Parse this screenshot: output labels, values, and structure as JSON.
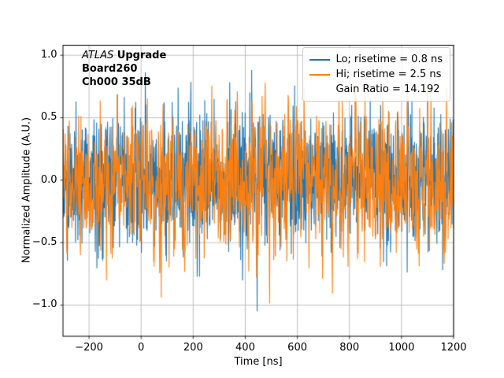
{
  "chart_data": {
    "type": "line",
    "xlabel": "Time [ns]",
    "ylabel": "Normalized Amplitude (A.U.)",
    "xlim": [
      -300,
      1200
    ],
    "ylim": [
      -1.25,
      1.08
    ],
    "xticks": [
      -200,
      0,
      200,
      400,
      600,
      800,
      1000,
      1200
    ],
    "yticks": [
      1.0,
      0.5,
      0.0,
      -0.5,
      -1.0
    ],
    "grid": true,
    "legend_position": "upper right",
    "annotation": {
      "line1_italic": "ATLAS",
      "line1_bold": " Upgrade",
      "line2": "Board260",
      "line3": "Ch000 35dB"
    },
    "series": [
      {
        "name": "Lo; risetime = 0.8 ns",
        "color": "#1f77b4",
        "kind": "noise",
        "n_points": 1500,
        "sigma": 0.27,
        "smooth": 1,
        "seed": 1337,
        "approx_peak_amplitude": 0.95
      },
      {
        "name": "Hi; risetime = 2.5 ns",
        "color": "#ff7f0e",
        "kind": "noise",
        "n_points": 1500,
        "sigma": 0.27,
        "smooth": 2,
        "seed": 777,
        "approx_peak_amplitude": 0.95
      }
    ],
    "legend": [
      {
        "label": "Lo; risetime = 0.8 ns",
        "color": "#1f77b4",
        "line": true
      },
      {
        "label": "Hi; risetime = 2.5 ns",
        "color": "#ff7f0e",
        "line": true
      },
      {
        "label": "Gain Ratio = 14.192",
        "color": null,
        "line": false
      }
    ]
  },
  "colors": {
    "background": "#ffffff",
    "frame": "#000000",
    "grid": "#b0b0b0",
    "legend_border": "#cccccc"
  }
}
